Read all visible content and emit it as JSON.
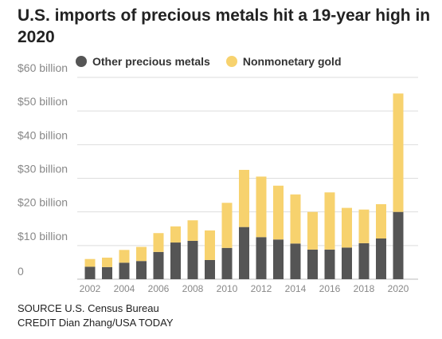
{
  "chart_data": {
    "type": "bar",
    "stacked": true,
    "title": "U.S. imports of precious metals hit a 19-year high in 2020",
    "xlabel": "",
    "ylabel": "",
    "categories": [
      "2002",
      "2003",
      "2004",
      "2005",
      "2006",
      "2007",
      "2008",
      "2009",
      "2010",
      "2011",
      "2012",
      "2013",
      "2014",
      "2015",
      "2016",
      "2017",
      "2018",
      "2019",
      "2020"
    ],
    "x_tick_labels": [
      "2002",
      "2004",
      "2006",
      "2008",
      "2010",
      "2012",
      "2014",
      "2016",
      "2018",
      "2020"
    ],
    "y_tick_labels": [
      "0",
      "$10 billion",
      "$20 billion",
      "$30 billion",
      "$40 billion",
      "$50 billion",
      "$60 billion"
    ],
    "ylim": [
      0,
      60
    ],
    "grid": true,
    "legend_position": "top",
    "series": [
      {
        "name": "Other precious metals",
        "color": "#555555",
        "values": [
          3.7,
          3.6,
          4.9,
          5.4,
          8.1,
          10.9,
          11.4,
          5.7,
          9.3,
          15.5,
          12.5,
          11.8,
          10.6,
          8.8,
          8.8,
          9.4,
          10.7,
          12.1,
          20.0
        ]
      },
      {
        "name": "Nonmonetary gold",
        "color": "#F7D26E",
        "values": [
          2.3,
          2.8,
          3.8,
          4.2,
          5.6,
          4.8,
          6.1,
          8.8,
          13.4,
          17.0,
          18.0,
          16.0,
          14.6,
          11.2,
          17.0,
          11.8,
          10.0,
          10.2,
          35.2
        ]
      }
    ]
  },
  "footer": {
    "source": "SOURCE U.S. Census Bureau",
    "credit": "CREDIT Dian Zhang/USA TODAY"
  },
  "colors": {
    "grid": "#dddddd",
    "axis_text": "#888888",
    "baseline": "#bbbbbb"
  }
}
